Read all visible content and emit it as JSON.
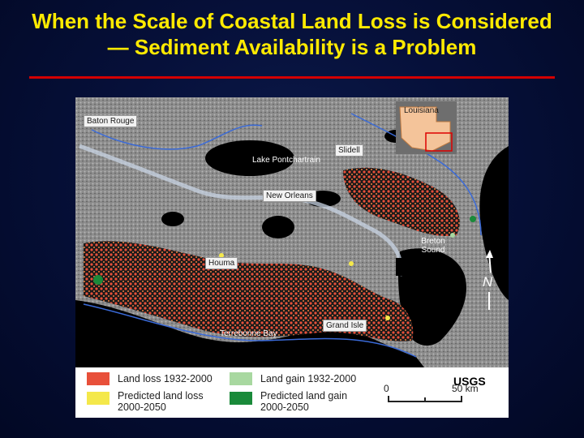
{
  "title": {
    "line1": "When the Scale of Coastal Land Loss is Considered",
    "line2": "— Sediment Availability is a Problem"
  },
  "map": {
    "places": {
      "baton_rouge": "Baton Rouge",
      "louisiana": "Louisiana",
      "slidell": "Slidell",
      "lake_pontchartrain": "Lake Pontchartrain",
      "new_orleans": "New Orleans",
      "breton_sound_1": "Breton",
      "breton_sound_2": "Sound",
      "houma": "Houma",
      "terrebonne_bay": "Terrebonne Bay",
      "grand_isle": "Grand Isle"
    },
    "north_label": "N",
    "credit": "USGS"
  },
  "legend": {
    "items": [
      {
        "label": "Land loss 1932-2000",
        "color": "#e8503a"
      },
      {
        "label": "Land gain 1932-2000",
        "color": "#a8d8a0"
      },
      {
        "label": "Predicted land loss",
        "label2": "2000-2050",
        "color": "#f4e84a"
      },
      {
        "label": "Predicted land gain",
        "label2": "2000-2050",
        "color": "#1a8a3a"
      }
    ],
    "scale_zero": "0",
    "scale_max": "50 km"
  },
  "colors": {
    "title": "#ffea00",
    "rule": "#d40000",
    "background": "#06103a"
  }
}
